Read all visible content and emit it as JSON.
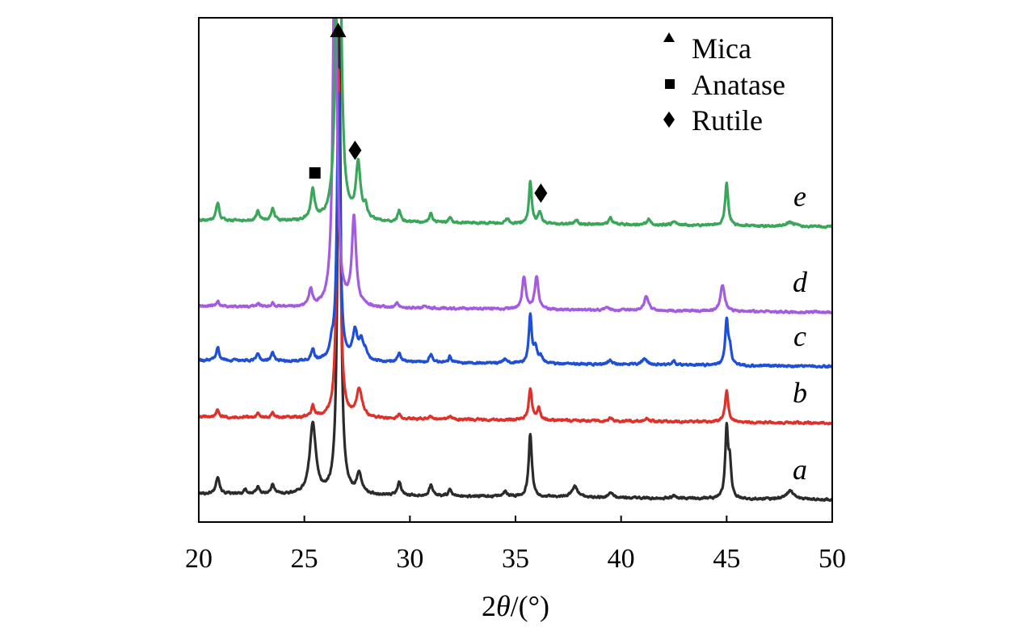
{
  "chart_data": {
    "type": "line",
    "title": "",
    "xlabel_prefix": "2",
    "xlabel_theta": "θ",
    "xlabel_suffix": "/(°)",
    "ylabel": "",
    "xlim": [
      20,
      50
    ],
    "x_ticks": [
      20,
      25,
      30,
      35,
      40,
      45,
      50
    ],
    "grid": false,
    "legend": {
      "placement": "top-right",
      "items": [
        {
          "marker": "triangle",
          "label": "Mica"
        },
        {
          "marker": "square",
          "label": "Anatase"
        },
        {
          "marker": "diamond",
          "label": "Rutile"
        }
      ]
    },
    "annotations": [
      {
        "marker": "triangle",
        "x": 26.6,
        "y_data": 610,
        "phase": "Mica"
      },
      {
        "marker": "square",
        "x": 25.5,
        "y_data": 432,
        "phase": "Anatase"
      },
      {
        "marker": "diamond",
        "x": 27.4,
        "y_data": 460,
        "phase": "Rutile"
      },
      {
        "marker": "diamond",
        "x": 36.2,
        "y_data": 407,
        "phase": "Rutile"
      }
    ],
    "series": [
      {
        "name": "a",
        "color": "#2b2b2b",
        "baseline": 35,
        "peaks": [
          [
            20.9,
            22,
            0.1
          ],
          [
            22.2,
            6,
            0.08
          ],
          [
            22.8,
            10,
            0.08
          ],
          [
            23.5,
            12,
            0.09
          ],
          [
            25.4,
            88,
            0.17
          ],
          [
            26.65,
            570,
            0.09
          ],
          [
            27.6,
            24,
            0.14
          ],
          [
            29.5,
            16,
            0.1
          ],
          [
            31.0,
            13,
            0.1
          ],
          [
            31.9,
            8,
            0.08
          ],
          [
            34.5,
            6,
            0.12
          ],
          [
            35.7,
            78,
            0.09
          ],
          [
            37.8,
            14,
            0.16
          ],
          [
            39.5,
            7,
            0.1
          ],
          [
            42.5,
            4,
            0.1
          ],
          [
            45.0,
            84,
            0.08
          ],
          [
            45.15,
            40,
            0.08
          ],
          [
            48.0,
            10,
            0.25
          ]
        ]
      },
      {
        "name": "b",
        "color": "#e0302a",
        "baseline": 130,
        "peaks": [
          [
            20.9,
            10,
            0.08
          ],
          [
            22.8,
            5,
            0.08
          ],
          [
            23.5,
            5,
            0.08
          ],
          [
            25.4,
            14,
            0.09
          ],
          [
            26.62,
            430,
            0.09
          ],
          [
            27.6,
            34,
            0.16
          ],
          [
            29.5,
            5,
            0.09
          ],
          [
            31.0,
            4,
            0.09
          ],
          [
            31.9,
            4,
            0.08
          ],
          [
            35.7,
            38,
            0.09
          ],
          [
            36.1,
            14,
            0.09
          ],
          [
            39.5,
            4,
            0.09
          ],
          [
            41.2,
            4,
            0.12
          ],
          [
            45.0,
            38,
            0.09
          ]
        ]
      },
      {
        "name": "c",
        "color": "#1f4fd6",
        "baseline": 200,
        "peaks": [
          [
            20.9,
            17,
            0.08
          ],
          [
            22.8,
            9,
            0.08
          ],
          [
            23.5,
            11,
            0.08
          ],
          [
            25.4,
            14,
            0.09
          ],
          [
            26.3,
            16,
            0.09
          ],
          [
            26.62,
            330,
            0.09
          ],
          [
            27.4,
            36,
            0.14
          ],
          [
            27.7,
            22,
            0.12
          ],
          [
            27.9,
            10,
            0.1
          ],
          [
            29.5,
            12,
            0.09
          ],
          [
            31.0,
            11,
            0.09
          ],
          [
            31.9,
            8,
            0.08
          ],
          [
            34.5,
            5,
            0.1
          ],
          [
            35.7,
            60,
            0.08
          ],
          [
            35.95,
            18,
            0.1
          ],
          [
            36.2,
            8,
            0.1
          ],
          [
            39.5,
            5,
            0.1
          ],
          [
            41.1,
            7,
            0.15
          ],
          [
            42.5,
            4,
            0.1
          ],
          [
            45.0,
            55,
            0.08
          ],
          [
            45.15,
            20,
            0.08
          ]
        ]
      },
      {
        "name": "d",
        "color": "#a45be0",
        "baseline": 267,
        "peaks": [
          [
            20.9,
            7,
            0.08
          ],
          [
            22.8,
            4,
            0.08
          ],
          [
            23.5,
            4,
            0.08
          ],
          [
            25.3,
            20,
            0.1
          ],
          [
            26.45,
            530,
            0.1
          ],
          [
            27.35,
            108,
            0.12
          ],
          [
            29.4,
            6,
            0.09
          ],
          [
            30.7,
            4,
            0.09
          ],
          [
            35.4,
            40,
            0.1
          ],
          [
            36.0,
            40,
            0.1
          ],
          [
            39.3,
            4,
            0.1
          ],
          [
            41.2,
            18,
            0.12
          ],
          [
            44.8,
            32,
            0.12
          ]
        ]
      },
      {
        "name": "e",
        "color": "#3aa65a",
        "baseline": 373,
        "peaks": [
          [
            20.9,
            22,
            0.09
          ],
          [
            22.8,
            12,
            0.09
          ],
          [
            23.5,
            16,
            0.09
          ],
          [
            25.4,
            38,
            0.11
          ],
          [
            26.62,
            720,
            0.1
          ],
          [
            27.55,
            68,
            0.13
          ],
          [
            27.9,
            14,
            0.1
          ],
          [
            29.5,
            14,
            0.09
          ],
          [
            31.0,
            12,
            0.09
          ],
          [
            31.9,
            7,
            0.08
          ],
          [
            34.6,
            6,
            0.1
          ],
          [
            35.7,
            52,
            0.08
          ],
          [
            36.15,
            14,
            0.1
          ],
          [
            37.9,
            5,
            0.1
          ],
          [
            39.5,
            8,
            0.1
          ],
          [
            41.3,
            7,
            0.1
          ],
          [
            42.5,
            5,
            0.1
          ],
          [
            45.0,
            52,
            0.09
          ],
          [
            48.0,
            5,
            0.2
          ]
        ]
      }
    ]
  }
}
